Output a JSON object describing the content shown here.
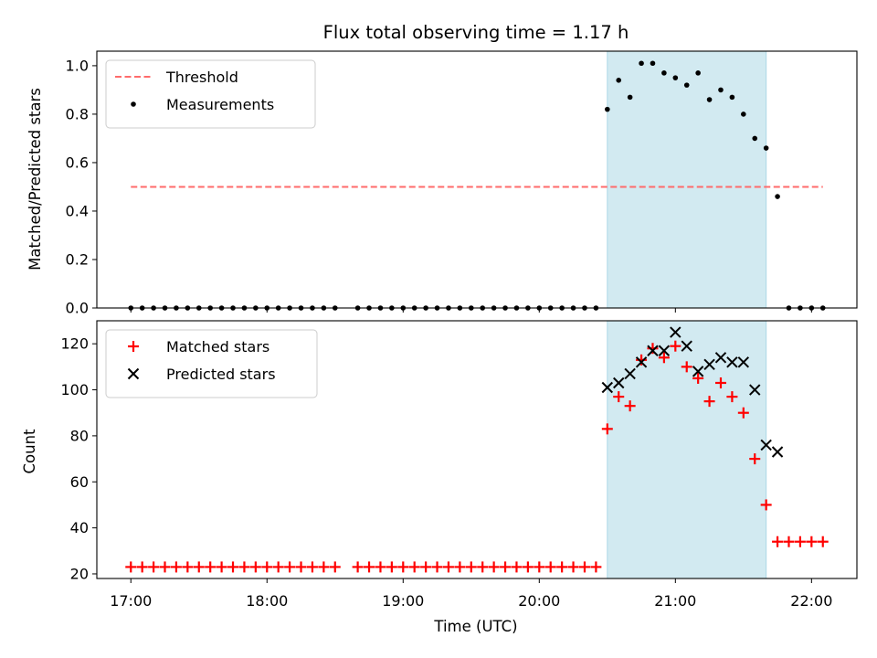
{
  "chart_data": [
    {
      "type": "scatter",
      "title": "Flux total observing time = 1.17 h",
      "xlabel": "",
      "ylabel": "Matched/Predicted stars",
      "ylim": [
        0,
        1.06
      ],
      "yticks": [
        "0.0",
        "0.2",
        "0.4",
        "0.6",
        "0.8",
        "1.0"
      ],
      "ytick_values": [
        0,
        0.2,
        0.4,
        0.6,
        0.8,
        1.0
      ],
      "highlight_span": {
        "start": "20:30",
        "end": "21:40",
        "color": "#add8e6"
      },
      "threshold": {
        "name": "Threshold",
        "value": 0.5,
        "x_start": "17:00",
        "x_end": "22:05",
        "color": "#ff6b6b",
        "style": "dashed"
      },
      "legend": {
        "location": "upper left",
        "entries": [
          "Threshold",
          "Measurements"
        ]
      },
      "series": [
        {
          "name": "Measurements",
          "marker": "dot",
          "color": "#000000",
          "x": [
            "17:00",
            "17:05",
            "17:10",
            "17:15",
            "17:20",
            "17:25",
            "17:30",
            "17:35",
            "17:40",
            "17:45",
            "17:50",
            "17:55",
            "18:00",
            "18:05",
            "18:10",
            "18:15",
            "18:20",
            "18:25",
            "18:30",
            "18:40",
            "18:45",
            "18:50",
            "18:55",
            "19:00",
            "19:05",
            "19:10",
            "19:15",
            "19:20",
            "19:25",
            "19:30",
            "19:35",
            "19:40",
            "19:45",
            "19:50",
            "19:55",
            "20:00",
            "20:05",
            "20:10",
            "20:15",
            "20:20",
            "20:25",
            "20:30",
            "20:35",
            "20:40",
            "20:45",
            "20:50",
            "20:55",
            "21:00",
            "21:05",
            "21:10",
            "21:15",
            "21:20",
            "21:25",
            "21:30",
            "21:35",
            "21:40",
            "21:45",
            "21:50",
            "21:55",
            "22:00",
            "22:05"
          ],
          "y": [
            0,
            0,
            0,
            0,
            0,
            0,
            0,
            0,
            0,
            0,
            0,
            0,
            0,
            0,
            0,
            0,
            0,
            0,
            0,
            0,
            0,
            0,
            0,
            0,
            0,
            0,
            0,
            0,
            0,
            0,
            0,
            0,
            0,
            0,
            0,
            0,
            0,
            0,
            0,
            0,
            0,
            0.82,
            0.94,
            0.87,
            1.01,
            1.01,
            0.97,
            0.95,
            0.92,
            0.97,
            0.86,
            0.9,
            0.87,
            0.8,
            0.7,
            0.66,
            0.46,
            0,
            0,
            0,
            0
          ]
        }
      ]
    },
    {
      "type": "scatter",
      "title": "",
      "xlabel": "Time (UTC)",
      "ylabel": "Count",
      "ylim": [
        18,
        130
      ],
      "yticks": [
        "20",
        "40",
        "60",
        "80",
        "100",
        "120"
      ],
      "ytick_values": [
        20,
        40,
        60,
        80,
        100,
        120
      ],
      "xticks": [
        "17:00",
        "18:00",
        "19:00",
        "20:00",
        "21:00",
        "22:00"
      ],
      "xlim": [
        "16:45",
        "22:20"
      ],
      "highlight_span": {
        "start": "20:30",
        "end": "21:40",
        "color": "#add8e6"
      },
      "legend": {
        "location": "upper left",
        "entries": [
          "Matched stars",
          "Predicted stars"
        ]
      },
      "series": [
        {
          "name": "Matched stars",
          "marker": "plus",
          "color": "#ff0000",
          "x": [
            "17:00",
            "17:05",
            "17:10",
            "17:15",
            "17:20",
            "17:25",
            "17:30",
            "17:35",
            "17:40",
            "17:45",
            "17:50",
            "17:55",
            "18:00",
            "18:05",
            "18:10",
            "18:15",
            "18:20",
            "18:25",
            "18:30",
            "18:40",
            "18:45",
            "18:50",
            "18:55",
            "19:00",
            "19:05",
            "19:10",
            "19:15",
            "19:20",
            "19:25",
            "19:30",
            "19:35",
            "19:40",
            "19:45",
            "19:50",
            "19:55",
            "20:00",
            "20:05",
            "20:10",
            "20:15",
            "20:20",
            "20:25",
            "20:30",
            "20:35",
            "20:40",
            "20:45",
            "20:50",
            "20:55",
            "21:00",
            "21:05",
            "21:10",
            "21:15",
            "21:20",
            "21:25",
            "21:30",
            "21:35",
            "21:40",
            "21:45",
            "21:50",
            "21:55",
            "22:00",
            "22:05"
          ],
          "y": [
            23,
            23,
            23,
            23,
            23,
            23,
            23,
            23,
            23,
            23,
            23,
            23,
            23,
            23,
            23,
            23,
            23,
            23,
            23,
            23,
            23,
            23,
            23,
            23,
            23,
            23,
            23,
            23,
            23,
            23,
            23,
            23,
            23,
            23,
            23,
            23,
            23,
            23,
            23,
            23,
            23,
            83,
            97,
            93,
            113,
            118,
            114,
            119,
            110,
            105,
            95,
            103,
            97,
            90,
            70,
            50,
            34,
            34,
            34,
            34,
            34
          ]
        },
        {
          "name": "Predicted stars",
          "marker": "x",
          "color": "#000000",
          "x": [
            "20:30",
            "20:35",
            "20:40",
            "20:45",
            "20:50",
            "20:55",
            "21:00",
            "21:05",
            "21:10",
            "21:15",
            "21:20",
            "21:25",
            "21:30",
            "21:35",
            "21:40",
            "21:45"
          ],
          "y": [
            101,
            103,
            107,
            112,
            117,
            117,
            125,
            119,
            108,
            111,
            114,
            112,
            112,
            100,
            76,
            73
          ]
        }
      ]
    }
  ]
}
